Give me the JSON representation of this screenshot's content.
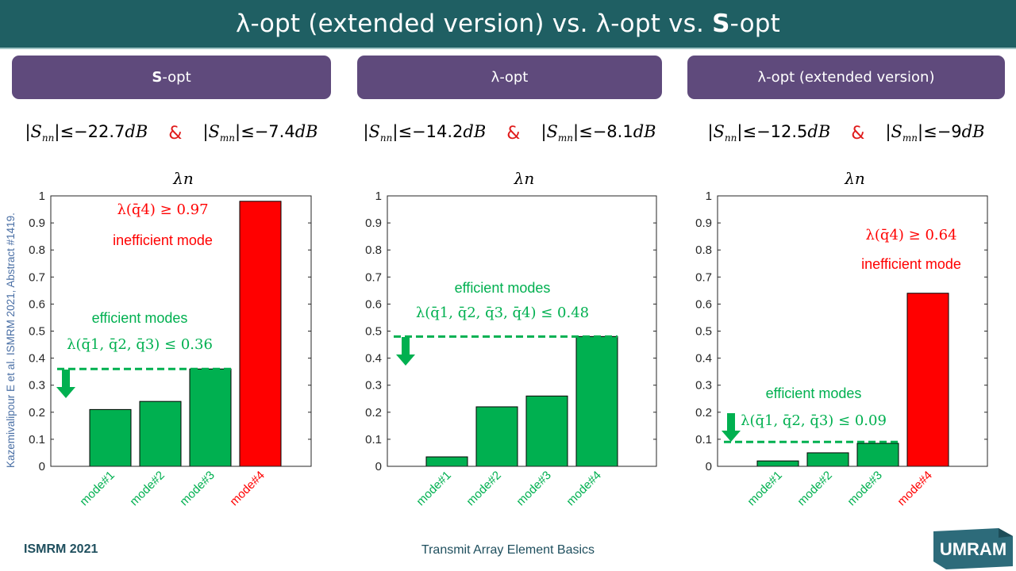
{
  "slide": {
    "title_part1": "λ-opt (extended version) vs. λ-opt vs. ",
    "title_bold": "S",
    "title_part2": "-opt",
    "citation": "Kazemivalipour E et al. ISMRM 2021, Abstract #1419.",
    "footer_left": "ISMRM 2021",
    "footer_center": "Transmit Array Element Basics",
    "logo_text": "UMRAM"
  },
  "colors": {
    "title_bar": "#1f5f63",
    "method_box": "#5f4a7c",
    "efficient": "#00b050",
    "inefficient": "#ff0000",
    "ampersand": "#e01b1b"
  },
  "panels": [
    {
      "method_bold": "S",
      "method_rest": "-opt",
      "snn_value": "−22.7",
      "smn_value": "−7.4",
      "unit": "dB"
    },
    {
      "method_bold": "",
      "method_rest": "λ-opt",
      "snn_value": "−14.2",
      "smn_value": "−8.1",
      "unit": "dB"
    },
    {
      "method_bold": "",
      "method_rest": "λ-opt (extended version)",
      "snn_value": "−12.5",
      "smn_value": "−9",
      "unit": "dB"
    }
  ],
  "chart_data": [
    {
      "type": "bar",
      "title": "λn",
      "categories": [
        "mode#1",
        "mode#2",
        "mode#3",
        "mode#4"
      ],
      "values": [
        0.21,
        0.24,
        0.36,
        0.98
      ],
      "bar_colors": [
        "#00b050",
        "#00b050",
        "#00b050",
        "#ff0000"
      ],
      "ylim": [
        0,
        1
      ],
      "yticks": [
        0,
        0.1,
        0.2,
        0.3,
        0.4,
        0.5,
        0.6,
        0.7,
        0.8,
        0.9,
        1
      ],
      "threshold": 0.36,
      "annotations": {
        "efficient_label": "efficient modes",
        "efficient_formula": "λ(q̄1, q̄2, q̄3) ≤ 0.36",
        "inefficient_label": "inefficient mode",
        "inefficient_formula": "λ(q̄4) ≥ 0.97"
      }
    },
    {
      "type": "bar",
      "title": "λn",
      "categories": [
        "mode#1",
        "mode#2",
        "mode#3",
        "mode#4"
      ],
      "values": [
        0.035,
        0.22,
        0.26,
        0.48
      ],
      "bar_colors": [
        "#00b050",
        "#00b050",
        "#00b050",
        "#00b050"
      ],
      "ylim": [
        0,
        1
      ],
      "yticks": [
        0,
        0.1,
        0.2,
        0.3,
        0.4,
        0.5,
        0.6,
        0.7,
        0.8,
        0.9,
        1
      ],
      "threshold": 0.48,
      "annotations": {
        "efficient_label": "efficient modes",
        "efficient_formula": "λ(q̄1, q̄2, q̄3, q̄4) ≤ 0.48"
      }
    },
    {
      "type": "bar",
      "title": "λn",
      "categories": [
        "mode#1",
        "mode#2",
        "mode#3",
        "mode#4"
      ],
      "values": [
        0.02,
        0.05,
        0.085,
        0.64
      ],
      "bar_colors": [
        "#00b050",
        "#00b050",
        "#00b050",
        "#ff0000"
      ],
      "ylim": [
        0,
        1
      ],
      "yticks": [
        0,
        0.1,
        0.2,
        0.3,
        0.4,
        0.5,
        0.6,
        0.7,
        0.8,
        0.9,
        1
      ],
      "threshold": 0.09,
      "annotations": {
        "efficient_label": "efficient modes",
        "efficient_formula": "λ(q̄1, q̄2, q̄3) ≤ 0.09",
        "inefficient_label": "inefficient mode",
        "inefficient_formula": "λ(q̄4) ≥ 0.64"
      }
    }
  ]
}
